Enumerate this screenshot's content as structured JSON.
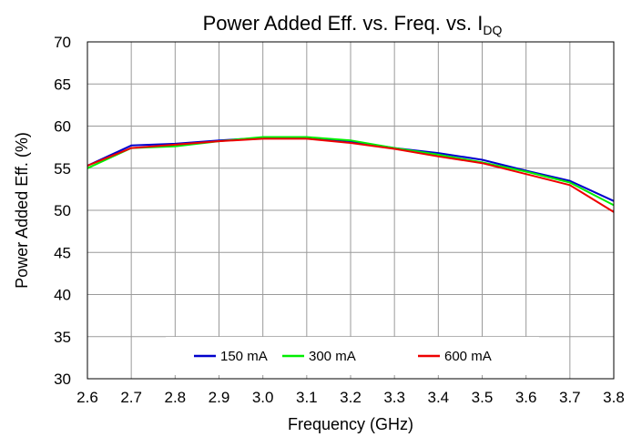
{
  "chart_data": {
    "type": "line",
    "title_main": "Power Added Eff. vs. Freq. vs. I",
    "title_sub": "DQ",
    "xlabel": "Frequency (GHz)",
    "ylabel": "Power Added Eff. (%)",
    "xlim": [
      2.6,
      3.8
    ],
    "ylim": [
      30,
      70
    ],
    "x_ticks": [
      "2.6",
      "2.7",
      "2.8",
      "2.9",
      "3.0",
      "3.1",
      "3.2",
      "3.3",
      "3.4",
      "3.5",
      "3.6",
      "3.7",
      "3.8"
    ],
    "y_ticks": [
      "30",
      "35",
      "40",
      "45",
      "50",
      "55",
      "60",
      "65",
      "70"
    ],
    "grid": true,
    "legend_position": "bottom-center",
    "x": [
      2.6,
      2.7,
      2.8,
      2.9,
      3.0,
      3.1,
      3.2,
      3.3,
      3.4,
      3.5,
      3.6,
      3.7,
      3.8
    ],
    "series": [
      {
        "name": "150 mA",
        "color": "#0000cc",
        "values": [
          55.3,
          57.7,
          57.9,
          58.3,
          58.6,
          58.6,
          58.2,
          57.4,
          56.8,
          56.0,
          54.7,
          53.5,
          51.1
        ]
      },
      {
        "name": "300 mA",
        "color": "#00ee00",
        "values": [
          55.0,
          57.4,
          57.6,
          58.2,
          58.7,
          58.7,
          58.3,
          57.4,
          56.6,
          55.7,
          54.6,
          53.3,
          50.6
        ]
      },
      {
        "name": "600 mA",
        "color": "#ee0000",
        "values": [
          55.3,
          57.4,
          57.8,
          58.2,
          58.5,
          58.5,
          58.0,
          57.3,
          56.4,
          55.6,
          54.3,
          53.0,
          49.8
        ]
      }
    ]
  }
}
